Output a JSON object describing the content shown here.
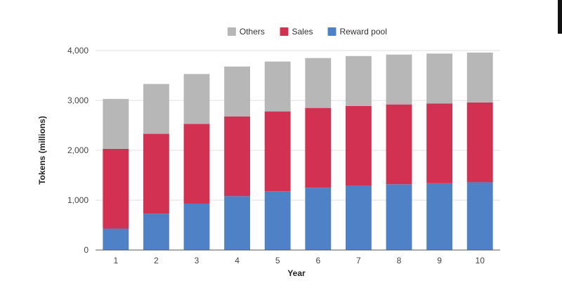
{
  "chart_data": {
    "type": "bar",
    "stacked": true,
    "categories": [
      "1",
      "2",
      "3",
      "4",
      "5",
      "6",
      "7",
      "8",
      "9",
      "10"
    ],
    "series": [
      {
        "name": "Reward pool",
        "color": "#4f81c7",
        "values": [
          430,
          730,
          930,
          1080,
          1180,
          1250,
          1290,
          1320,
          1340,
          1360
        ]
      },
      {
        "name": "Sales",
        "color": "#d33152",
        "values": [
          1600,
          1600,
          1600,
          1600,
          1600,
          1600,
          1600,
          1600,
          1600,
          1600
        ]
      },
      {
        "name": "Others",
        "color": "#b7b7b7",
        "values": [
          1000,
          1000,
          1000,
          1000,
          1000,
          1000,
          1000,
          1000,
          1000,
          1000
        ]
      }
    ],
    "legend_order": [
      "Others",
      "Sales",
      "Reward pool"
    ],
    "legend_position": "top-center",
    "xlabel": "Year",
    "ylabel": "Tokens (millions)",
    "ylim": [
      0,
      4000
    ],
    "yticks": [
      0,
      1000,
      2000,
      3000,
      4000
    ],
    "ytick_labels": [
      "0",
      "1,000",
      "2,000",
      "3,000",
      "4,000"
    ],
    "grid": true
  }
}
